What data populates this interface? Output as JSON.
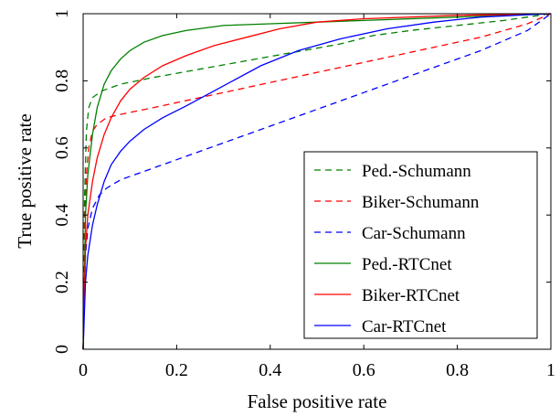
{
  "chart_data": {
    "type": "line",
    "xlabel": "False positive rate",
    "ylabel": "True positive rate",
    "xlim": [
      0,
      1
    ],
    "ylim": [
      0,
      1
    ],
    "xticks": [
      0,
      0.2,
      0.4,
      0.6,
      0.8,
      1
    ],
    "xtick_labels": [
      "0",
      "0.2",
      "0.4",
      "0.6",
      "0.8",
      "1"
    ],
    "yticks": [
      0,
      0.2,
      0.4,
      0.6,
      0.8,
      1
    ],
    "ytick_labels": [
      "0",
      "0.2",
      "0.4",
      "0.6",
      "0.8",
      "1"
    ],
    "grid": false,
    "legend_position": "bottom-right",
    "series": [
      {
        "name": "Ped.-Schumann",
        "color": "#008000",
        "dash": "dashed",
        "x": [
          0,
          0.003,
          0.007,
          0.012,
          0.02,
          0.04,
          0.08,
          0.15,
          0.25,
          0.35,
          0.45,
          0.55,
          0.62,
          0.7,
          0.8,
          0.9,
          1
        ],
        "y": [
          0,
          0.45,
          0.65,
          0.72,
          0.75,
          0.77,
          0.79,
          0.81,
          0.835,
          0.86,
          0.885,
          0.91,
          0.935,
          0.95,
          0.965,
          0.98,
          1
        ]
      },
      {
        "name": "Biker-Schumann",
        "color": "#ff0000",
        "dash": "dashed",
        "x": [
          0,
          0.003,
          0.007,
          0.012,
          0.02,
          0.03,
          0.05,
          0.08,
          0.15,
          0.25,
          0.35,
          0.45,
          0.55,
          0.65,
          0.75,
          0.85,
          0.95,
          1
        ],
        "y": [
          0,
          0.35,
          0.52,
          0.6,
          0.65,
          0.67,
          0.69,
          0.7,
          0.72,
          0.75,
          0.78,
          0.81,
          0.84,
          0.87,
          0.9,
          0.93,
          0.97,
          1
        ]
      },
      {
        "name": "Car-Schumann",
        "color": "#0000ff",
        "dash": "dashed",
        "x": [
          0,
          0.005,
          0.01,
          0.02,
          0.035,
          0.05,
          0.08,
          0.15,
          0.25,
          0.35,
          0.45,
          0.55,
          0.65,
          0.75,
          0.85,
          0.95,
          1
        ],
        "y": [
          0,
          0.28,
          0.36,
          0.42,
          0.46,
          0.48,
          0.505,
          0.54,
          0.59,
          0.64,
          0.69,
          0.74,
          0.79,
          0.84,
          0.89,
          0.95,
          1
        ]
      },
      {
        "name": "Ped.-RTCnet",
        "color": "#008000",
        "dash": "solid",
        "x": [
          0,
          0.005,
          0.01,
          0.02,
          0.03,
          0.045,
          0.06,
          0.08,
          0.1,
          0.13,
          0.17,
          0.22,
          0.3,
          0.4,
          0.5,
          0.6,
          0.8,
          1
        ],
        "y": [
          0,
          0.4,
          0.52,
          0.64,
          0.72,
          0.79,
          0.83,
          0.865,
          0.89,
          0.915,
          0.935,
          0.95,
          0.965,
          0.97,
          0.975,
          0.98,
          0.99,
          1
        ]
      },
      {
        "name": "Biker-RTCnet",
        "color": "#ff0000",
        "dash": "solid",
        "x": [
          0,
          0.005,
          0.01,
          0.02,
          0.03,
          0.045,
          0.06,
          0.08,
          0.1,
          0.13,
          0.17,
          0.22,
          0.28,
          0.35,
          0.42,
          0.5,
          0.6,
          0.8,
          1
        ],
        "y": [
          0,
          0.3,
          0.4,
          0.5,
          0.57,
          0.64,
          0.69,
          0.74,
          0.775,
          0.81,
          0.845,
          0.875,
          0.905,
          0.93,
          0.955,
          0.975,
          0.985,
          0.995,
          1
        ]
      },
      {
        "name": "Car-RTCnet",
        "color": "#0000ff",
        "dash": "solid",
        "x": [
          0,
          0.005,
          0.01,
          0.02,
          0.03,
          0.045,
          0.06,
          0.08,
          0.1,
          0.13,
          0.17,
          0.22,
          0.3,
          0.38,
          0.46,
          0.55,
          0.65,
          0.75,
          0.85,
          0.95,
          1
        ],
        "y": [
          0,
          0.2,
          0.28,
          0.37,
          0.43,
          0.5,
          0.55,
          0.59,
          0.62,
          0.655,
          0.69,
          0.725,
          0.785,
          0.845,
          0.89,
          0.925,
          0.955,
          0.975,
          0.99,
          0.997,
          1
        ]
      }
    ]
  }
}
